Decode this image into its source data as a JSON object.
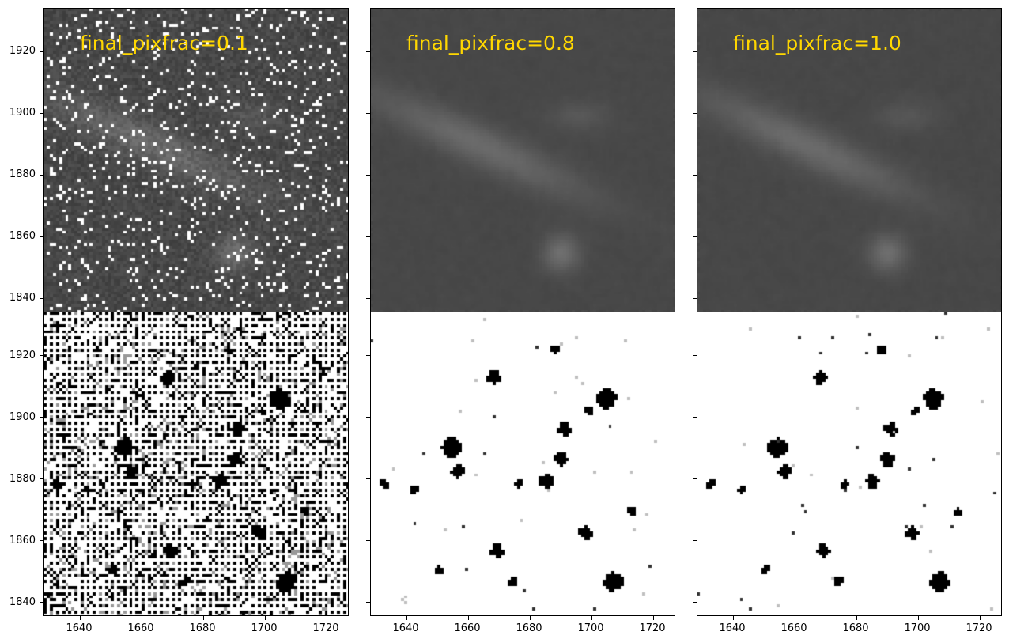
{
  "panels": [
    {
      "label": "final_pixfrac=0.1",
      "view": "science",
      "pixfrac": 0.1
    },
    {
      "label": "final_pixfrac=0.8",
      "view": "science",
      "pixfrac": 0.8
    },
    {
      "label": "final_pixfrac=1.0",
      "view": "science",
      "pixfrac": 1.0
    },
    {
      "label": "",
      "view": "weight",
      "pixfrac": 0.1
    },
    {
      "label": "",
      "view": "weight",
      "pixfrac": 0.8
    },
    {
      "label": "",
      "view": "weight",
      "pixfrac": 1.0
    }
  ],
  "x_axis": {
    "ticks": [
      "1640",
      "1660",
      "1680",
      "1700",
      "1720"
    ],
    "values": [
      1640,
      1660,
      1680,
      1700,
      1720
    ],
    "range": [
      1628,
      1727
    ]
  },
  "y_axis": {
    "ticks": [
      "1920",
      "1900",
      "1880",
      "1860",
      "1840"
    ],
    "values": [
      1920,
      1900,
      1880,
      1860,
      1840
    ],
    "range": [
      1836,
      1935
    ]
  },
  "colors": {
    "label": "#ffd700",
    "frame": "#000000"
  },
  "colormap": "gray"
}
